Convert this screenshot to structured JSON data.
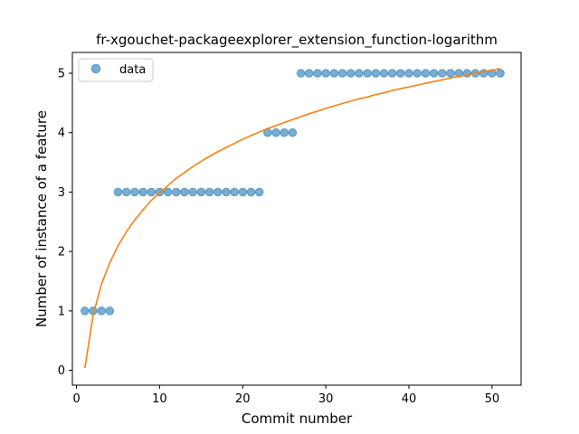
{
  "chart_data": {
    "type": "scatter",
    "title": "fr-xgouchet-packageexplorer_extension_function-logarithm",
    "xlabel": "Commit number",
    "ylabel": "Number of instance of a feature",
    "xlim": [
      -0.5,
      53.5
    ],
    "ylim": [
      -0.25,
      5.35
    ],
    "xticks": [
      0,
      10,
      20,
      30,
      40,
      50
    ],
    "yticks": [
      0,
      1,
      2,
      3,
      4,
      5
    ],
    "grid": false,
    "legend_position": "upper-left",
    "series": [
      {
        "name": "data",
        "kind": "scatter",
        "color": "#1f77b4",
        "x": [
          1,
          2,
          3,
          4,
          5,
          6,
          7,
          8,
          9,
          10,
          11,
          12,
          13,
          14,
          15,
          16,
          17,
          18,
          19,
          20,
          21,
          22,
          23,
          24,
          25,
          26,
          27,
          28,
          29,
          30,
          31,
          32,
          33,
          34,
          35,
          36,
          37,
          38,
          39,
          40,
          41,
          42,
          43,
          44,
          45,
          46,
          47,
          48,
          49,
          50,
          51
        ],
        "y": [
          1,
          1,
          1,
          1,
          3,
          3,
          3,
          3,
          3,
          3,
          3,
          3,
          3,
          3,
          3,
          3,
          3,
          3,
          3,
          3,
          3,
          3,
          4,
          4,
          4,
          4,
          5,
          5,
          5,
          5,
          5,
          5,
          5,
          5,
          5,
          5,
          5,
          5,
          5,
          5,
          5,
          5,
          5,
          5,
          5,
          5,
          5,
          5,
          5,
          5,
          5
        ]
      },
      {
        "kind": "line",
        "color": "#ff7f0e",
        "x": [
          1,
          2,
          3,
          4,
          5,
          6,
          7,
          8,
          9,
          10,
          11,
          12,
          13,
          14,
          15,
          16,
          17,
          18,
          19,
          20,
          21,
          22,
          23,
          24,
          25,
          26,
          27,
          28,
          29,
          30,
          31,
          32,
          33,
          34,
          35,
          36,
          37,
          38,
          39,
          40,
          41,
          42,
          43,
          44,
          45,
          46,
          47,
          48,
          49,
          50,
          51
        ],
        "y": [
          0.04,
          0.93,
          1.45,
          1.81,
          2.1,
          2.33,
          2.53,
          2.7,
          2.86,
          2.99,
          3.11,
          3.23,
          3.33,
          3.43,
          3.52,
          3.6,
          3.68,
          3.75,
          3.82,
          3.89,
          3.95,
          4.01,
          4.07,
          4.12,
          4.17,
          4.22,
          4.27,
          4.32,
          4.36,
          4.41,
          4.45,
          4.49,
          4.53,
          4.57,
          4.6,
          4.64,
          4.67,
          4.71,
          4.74,
          4.77,
          4.8,
          4.83,
          4.86,
          4.89,
          4.92,
          4.95,
          4.97,
          5.0,
          5.03,
          5.05,
          5.08
        ]
      }
    ]
  }
}
